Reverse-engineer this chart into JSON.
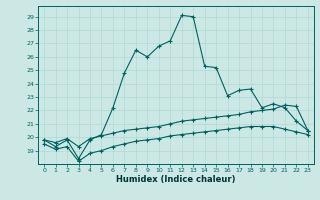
{
  "xlabel": "Humidex (Indice chaleur)",
  "bg_color": "#cce8e4",
  "line_color": "#006060",
  "xlim": [
    -0.5,
    23.5
  ],
  "ylim": [
    18,
    29.8
  ],
  "yticks": [
    19,
    20,
    21,
    22,
    23,
    24,
    25,
    26,
    27,
    28,
    29
  ],
  "xticks": [
    0,
    1,
    2,
    3,
    4,
    5,
    6,
    7,
    8,
    9,
    10,
    11,
    12,
    13,
    14,
    15,
    16,
    17,
    18,
    19,
    20,
    21,
    22,
    23
  ],
  "x": [
    0,
    1,
    2,
    3,
    4,
    5,
    6,
    7,
    8,
    9,
    10,
    11,
    12,
    13,
    14,
    15,
    16,
    17,
    18,
    19,
    20,
    21,
    22,
    23
  ],
  "line1": [
    19.8,
    19.3,
    19.8,
    18.4,
    19.8,
    20.2,
    22.2,
    24.8,
    26.5,
    26.0,
    26.8,
    27.2,
    29.1,
    29.0,
    25.3,
    25.2,
    23.1,
    23.5,
    23.6,
    22.2,
    22.5,
    22.2,
    21.2,
    20.5
  ],
  "line2": [
    19.8,
    19.6,
    19.9,
    19.3,
    19.9,
    20.1,
    20.3,
    20.5,
    20.6,
    20.7,
    20.8,
    21.0,
    21.2,
    21.3,
    21.4,
    21.5,
    21.6,
    21.7,
    21.9,
    22.0,
    22.1,
    22.4,
    22.3,
    20.5
  ],
  "line3": [
    19.5,
    19.1,
    19.3,
    18.2,
    18.8,
    19.0,
    19.3,
    19.5,
    19.7,
    19.8,
    19.9,
    20.1,
    20.2,
    20.3,
    20.4,
    20.5,
    20.6,
    20.7,
    20.8,
    20.8,
    20.8,
    20.6,
    20.4,
    20.2
  ]
}
